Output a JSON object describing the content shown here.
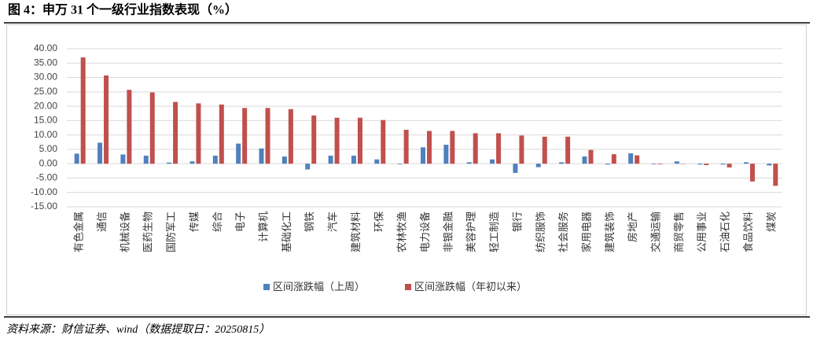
{
  "chart_data": {
    "type": "bar",
    "title": "图 4：申万 31 个一级行业指数表现（%）",
    "source": "资料来源：财信证券、wind（数据提取日：20250815）",
    "categories": [
      "有色金属",
      "通信",
      "机械设备",
      "医药生物",
      "国防军工",
      "传媒",
      "综合",
      "电子",
      "计算机",
      "基础化工",
      "钢铁",
      "汽车",
      "建筑材料",
      "环保",
      "农林牧渔",
      "电力设备",
      "非银金融",
      "美容护理",
      "轻工制造",
      "银行",
      "纺织服饰",
      "社会服务",
      "家用电器",
      "建筑装饰",
      "房地产",
      "交通运输",
      "商贸零售",
      "公用事业",
      "石油石化",
      "食品饮料",
      "煤炭"
    ],
    "series": [
      {
        "name": "区间涨跌幅（上周）",
        "color": "#4f81bd",
        "values": [
          3.5,
          7.3,
          3.2,
          2.8,
          0.4,
          0.8,
          2.8,
          7.0,
          5.3,
          2.5,
          -2.0,
          2.8,
          2.8,
          1.5,
          -0.2,
          5.7,
          6.6,
          0.5,
          1.5,
          -3.2,
          -1.2,
          0.5,
          2.5,
          -0.3,
          3.6,
          -0.2,
          0.8,
          -0.3,
          -0.3,
          0.5,
          -0.6
        ]
      },
      {
        "name": "区间涨跌幅（年初以来）",
        "color": "#c0504d",
        "values": [
          37.0,
          30.7,
          25.7,
          24.8,
          21.5,
          21.0,
          20.6,
          19.4,
          19.4,
          19.0,
          16.8,
          16.0,
          16.0,
          15.2,
          11.8,
          11.4,
          11.4,
          10.6,
          10.6,
          9.8,
          9.4,
          9.4,
          4.8,
          3.3,
          2.9,
          -0.2,
          -0.1,
          -0.5,
          -1.3,
          -6.2,
          -7.7
        ]
      }
    ],
    "ylim": [
      -15,
      40
    ],
    "yticks": [
      {
        "value": -15,
        "label": "-15.00"
      },
      {
        "value": -10,
        "label": "-10.00"
      },
      {
        "value": -5,
        "label": "-5.00"
      },
      {
        "value": 0,
        "label": "0.00"
      },
      {
        "value": 5,
        "label": "5.00"
      },
      {
        "value": 10,
        "label": "10.00"
      },
      {
        "value": 15,
        "label": "15.00"
      },
      {
        "value": 20,
        "label": "20.00"
      },
      {
        "value": 25,
        "label": "25.00"
      },
      {
        "value": 30,
        "label": "30.00"
      },
      {
        "value": 35,
        "label": "35.00"
      },
      {
        "value": 40,
        "label": "40.00"
      }
    ],
    "grid": true
  }
}
